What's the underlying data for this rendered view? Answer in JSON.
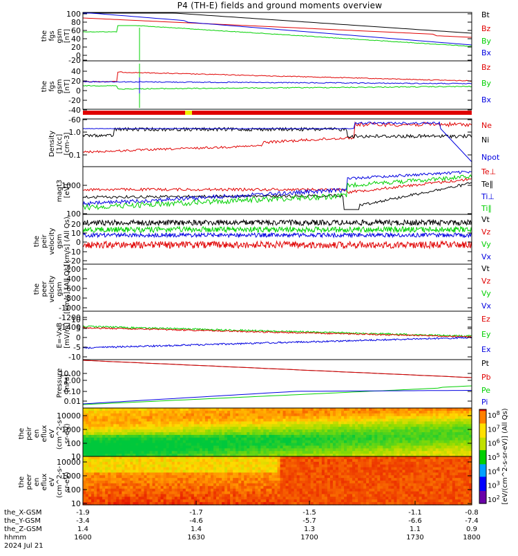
{
  "title": "P4 (TH-E) fields and ground moments overview",
  "colors": {
    "black": "#000000",
    "red": "#e00000",
    "green": "#00d000",
    "blue": "#0000e0",
    "yellow": "#f0f000"
  },
  "panels": [
    {
      "id": "fgs-nT-1",
      "ylabel": [
        "the",
        "fgs",
        "gsm",
        "[nT]"
      ],
      "ticks": [
        "100",
        "80",
        "60",
        "40",
        "20",
        "0",
        "-20"
      ],
      "legend": [
        {
          "text": "Bt",
          "color": "black"
        },
        {
          "text": "Bz",
          "color": "red"
        },
        {
          "text": "By",
          "color": "green"
        },
        {
          "text": "Bx",
          "color": "blue"
        }
      ]
    },
    {
      "id": "fgs-nT-2",
      "ylabel": [
        "the",
        "fgs",
        "gsm",
        "[nT]"
      ],
      "ticks": [
        "40",
        "20",
        "0",
        "-20",
        "-40",
        "-60"
      ],
      "legend": [
        {
          "text": "Bz",
          "color": "red"
        },
        {
          "text": "By",
          "color": "green"
        },
        {
          "text": "Bx",
          "color": "blue"
        }
      ]
    },
    {
      "id": "density",
      "ylabel": [
        "Density",
        "[1/cc]",
        "[cm-3]"
      ],
      "ticks": [
        "1.0",
        "0.1"
      ],
      "legend": [
        {
          "text": "Ne",
          "color": "red"
        },
        {
          "text": "Ni",
          "color": "black"
        },
        {
          "text": "Npot",
          "color": "blue"
        }
      ]
    },
    {
      "id": "temperature",
      "ylabel": [
        "magt3",
        "[eV]"
      ],
      "ticks": [
        "1000",
        "100"
      ],
      "legend": [
        {
          "text": "Te⊥",
          "color": "red"
        },
        {
          "text": "Te∥",
          "color": "black"
        },
        {
          "text": "Ti⊥",
          "color": "blue"
        },
        {
          "text": "Ti∥",
          "color": "green"
        }
      ]
    },
    {
      "id": "peir-velocity",
      "ylabel": [
        "the",
        "peir",
        "velocity",
        "gsm",
        "[km/s] (All Qs)"
      ],
      "ticks": [
        "20",
        "10",
        "0",
        "-10",
        "-20"
      ],
      "legend": [
        {
          "text": "Vt",
          "color": "black"
        },
        {
          "text": "Vz",
          "color": "red"
        },
        {
          "text": "Vy",
          "color": "green"
        },
        {
          "text": "Vx",
          "color": "blue"
        }
      ]
    },
    {
      "id": "peer-velocity",
      "ylabel": [
        "the",
        "peer",
        "velocity",
        "gsm",
        "[km/s] (All Qs)"
      ],
      "ticks": [
        "-200",
        "-400",
        "-600",
        "-800",
        "-1000",
        "-1200",
        "-1400"
      ],
      "legend": [
        {
          "text": "Vt",
          "color": "black"
        },
        {
          "text": "Vz",
          "color": "red"
        },
        {
          "text": "Vy",
          "color": "green"
        },
        {
          "text": "Vx",
          "color": "blue"
        }
      ]
    },
    {
      "id": "efield",
      "ylabel": [
        "E=-VxB",
        "[mV/m]"
      ],
      "ticks": [
        "10",
        "5",
        "0",
        "-5",
        "-10"
      ],
      "legend": [
        {
          "text": "Ez",
          "color": "red"
        },
        {
          "text": "Ey",
          "color": "green"
        },
        {
          "text": "Ex",
          "color": "blue"
        }
      ]
    },
    {
      "id": "pressure",
      "ylabel": [
        "Pressure",
        "[nPa]"
      ],
      "ticks": [
        "10.00",
        "1.00",
        "0.10",
        "0.01"
      ],
      "legend": [
        {
          "text": "Pt",
          "color": "black"
        },
        {
          "text": "Pb",
          "color": "red"
        },
        {
          "text": "Pe",
          "color": "green"
        },
        {
          "text": "Pi",
          "color": "blue"
        }
      ]
    },
    {
      "id": "peir-eflux",
      "ylabel": [
        "the",
        "peir",
        "en",
        "eflux",
        "eV",
        "(cm^2-s-",
        "sr-eV)"
      ],
      "ticks": [
        "10000",
        "1000",
        "100",
        "10"
      ]
    },
    {
      "id": "peer-eflux",
      "ylabel": [
        "the",
        "peer",
        "en",
        "eflux",
        "eV",
        "(cm^2-s-",
        "sr-eV)"
      ],
      "ticks": [
        "10000",
        "1000",
        "100",
        "10"
      ]
    }
  ],
  "colorbar": {
    "ticks": [
      "10^8",
      "10^7",
      "10^6",
      "10^5",
      "10^4",
      "10^3",
      "10^2"
    ],
    "label": "[eV/(cm^2-s-sr-eV)] (All Qs)"
  },
  "xaxis": {
    "rows": [
      {
        "label": "the_X-GSM",
        "values": [
          "-1.9",
          "-1.7",
          "-1.5",
          "-1.1",
          "-0.8"
        ]
      },
      {
        "label": "the_Y-GSM",
        "values": [
          "-3.4",
          "-4.6",
          "-5.7",
          "-6.6",
          "-7.4"
        ]
      },
      {
        "label": "the_Z-GSM",
        "values": [
          "1.4",
          "1.4",
          "1.3",
          "1.1",
          "0.9"
        ]
      },
      {
        "label": "hhmm",
        "values": [
          "1600",
          "1630",
          "1700",
          "1730",
          "1800"
        ]
      }
    ],
    "date": "2024 Jul 21"
  }
}
